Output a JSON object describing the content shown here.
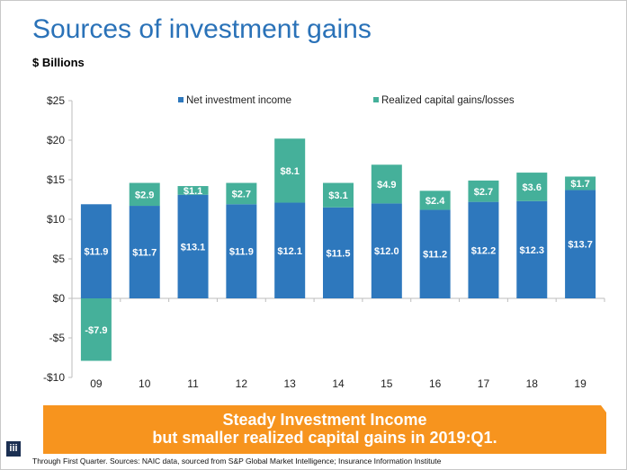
{
  "page": {
    "title": "Sources of investment gains",
    "subtitle": "$ Billions",
    "banner_line1": "Steady Investment Income",
    "banner_line2": "but smaller realized capital gains in 2019:Q1.",
    "source": "Through First Quarter. Sources: NAIC data, sourced from S&P Global Market Intelligence; Insurance Information Institute",
    "logo_text": "iii"
  },
  "chart_data": {
    "type": "bar",
    "stacked": true,
    "title": "Sources of investment gains",
    "ylabel": "$ Billions",
    "xlabel": "",
    "categories": [
      "09",
      "10",
      "11",
      "12",
      "13",
      "14",
      "15",
      "16",
      "17",
      "18",
      "19"
    ],
    "series": [
      {
        "name": "Net investment income",
        "color": "#2e78bd",
        "values": [
          11.9,
          11.7,
          13.1,
          11.9,
          12.1,
          11.5,
          12.0,
          11.2,
          12.2,
          12.3,
          13.7
        ],
        "labels": [
          "$11.9",
          "$11.7",
          "$13.1",
          "$11.9",
          "$12.1",
          "$11.5",
          "$12.0",
          "$11.2",
          "$12.2",
          "$12.3",
          "$13.7"
        ]
      },
      {
        "name": "Realized capital gains/losses",
        "color": "#45b09a",
        "values": [
          -7.9,
          2.9,
          1.1,
          2.7,
          8.1,
          3.1,
          4.9,
          2.4,
          2.7,
          3.6,
          1.7
        ],
        "labels": [
          "-$7.9",
          "$2.9",
          "$1.1",
          "$2.7",
          "$8.1",
          "$3.1",
          "$4.9",
          "$2.4",
          "$2.7",
          "$3.6",
          "$1.7"
        ]
      }
    ],
    "ylim": [
      -10,
      25
    ],
    "yticks": [
      25,
      20,
      15,
      10,
      5,
      0,
      -5,
      -10
    ],
    "ytick_labels": [
      "$25",
      "$20",
      "$15",
      "$10",
      "$5",
      "$0",
      "-$5",
      "-$10"
    ],
    "grid": false,
    "legend": "top-center"
  }
}
